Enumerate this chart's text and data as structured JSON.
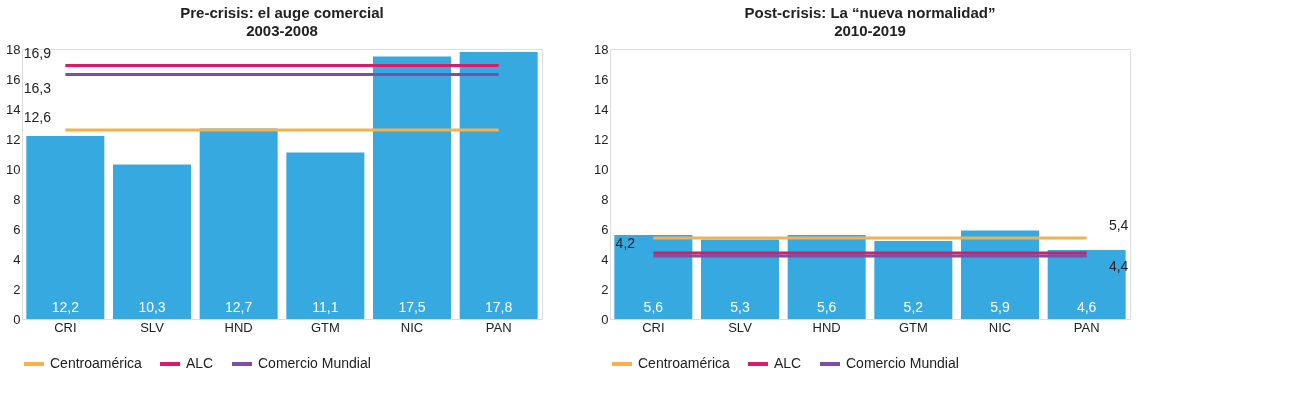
{
  "chart_data": [
    {
      "type": "bar",
      "title": "Pre-crisis: el auge comercial",
      "subtitle": "2003-2008",
      "categories": [
        "CRI",
        "SLV",
        "HND",
        "GTM",
        "NIC",
        "PAN"
      ],
      "ylim": [
        0,
        18
      ],
      "yticks": [
        0,
        2,
        4,
        6,
        8,
        10,
        12,
        14,
        16,
        18
      ],
      "grid": false,
      "legend": "bottom",
      "series": [
        {
          "color": "#35a9e0",
          "values": [
            12.2,
            10.3,
            12.7,
            11.1,
            17.5,
            17.8
          ],
          "value_labels": [
            "12,2",
            "10,3",
            "12,7",
            "11,1",
            "17,5",
            "17,8"
          ]
        },
        {
          "type": "line",
          "name": "Centroamérica",
          "color": "#f7b04a",
          "values": [
            12.6,
            12.6,
            12.6,
            12.6,
            12.6,
            12.6
          ],
          "value_labels": [
            "12,6",
            null,
            null,
            null,
            null,
            null
          ]
        },
        {
          "type": "line",
          "name": "ALC",
          "color": "#d81b6a",
          "values": [
            16.9,
            16.9,
            16.9,
            16.9,
            16.9,
            16.9
          ],
          "value_labels": [
            "16,9",
            null,
            null,
            null,
            null,
            null
          ]
        },
        {
          "type": "line",
          "name": "Comercio Mundial",
          "color": "#7f4ea0",
          "values": [
            16.3,
            16.3,
            16.3,
            16.3,
            16.3,
            16.3
          ],
          "value_labels": [
            "16,3",
            null,
            null,
            null,
            null,
            null
          ]
        }
      ]
    },
    {
      "type": "bar",
      "title": "Post-crisis: La “nueva normalidad”",
      "subtitle": "2010-2019",
      "categories": [
        "CRI",
        "SLV",
        "HND",
        "GTM",
        "NIC",
        "PAN"
      ],
      "ylim": [
        0,
        18
      ],
      "yticks": [
        0,
        2,
        4,
        6,
        8,
        10,
        12,
        14,
        16,
        18
      ],
      "grid": false,
      "legend": "bottom",
      "series": [
        {
          "color": "#35a9e0",
          "values": [
            5.6,
            5.3,
            5.6,
            5.2,
            5.9,
            4.6
          ],
          "value_labels": [
            "5,6",
            "5,3",
            "5,6",
            "5,2",
            "5,9",
            "4,6"
          ]
        },
        {
          "type": "line",
          "name": "Centroamérica",
          "color": "#f7b04a",
          "values": [
            5.4,
            5.4,
            5.4,
            5.4,
            5.4,
            5.4
          ],
          "value_labels": [
            null,
            null,
            null,
            null,
            null,
            "5,4"
          ]
        },
        {
          "type": "line",
          "name": "ALC",
          "color": "#d81b6a",
          "values": [
            4.4,
            4.4,
            4.4,
            4.4,
            4.4,
            4.4
          ],
          "value_labels": [
            null,
            null,
            null,
            null,
            null,
            "4,4"
          ]
        },
        {
          "type": "line",
          "name": "Comercio Mundial",
          "color": "#7f4ea0",
          "values": [
            4.2,
            4.2,
            4.2,
            4.2,
            4.2,
            4.2
          ],
          "value_labels": [
            "4,2",
            null,
            null,
            null,
            null,
            null
          ]
        }
      ]
    }
  ]
}
